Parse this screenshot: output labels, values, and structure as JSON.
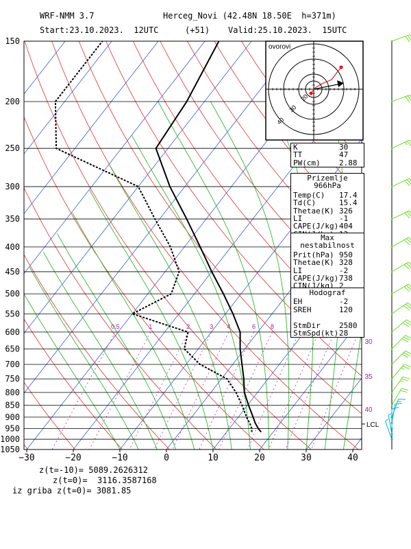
{
  "header": {
    "model": "WRF-NMM 3.7",
    "station": "Herceg_Novi (42.48N 18.50E  h=371m)",
    "start": "Start:23.10.2023.  12UTC",
    "lead": "(+51)",
    "valid": "Valid:25.10.2023.  15UTC"
  },
  "hodograph_inset": {
    "label": "ovorovi",
    "ring_labels": [
      "20",
      "30",
      "40"
    ]
  },
  "tables": {
    "indices": [
      {
        "k": "K",
        "v": "30"
      },
      {
        "k": "TT",
        "v": "47"
      },
      {
        "k": "PW(cm)",
        "v": "2.88"
      }
    ],
    "surface": {
      "title": "Prizemlje 966hPa",
      "rows": [
        {
          "k": "Temp(C)",
          "v": "17.4"
        },
        {
          "k": "Td(C)",
          "v": "15.4"
        },
        {
          "k": "Thetae(K)",
          "v": "326"
        },
        {
          "k": "LI",
          "v": "-1"
        },
        {
          "k": "CAPE(J/kg)",
          "v": "404"
        },
        {
          "k": "CIN(J/kg)",
          "v": "13"
        }
      ]
    },
    "max_instability": {
      "title": "Max nestabilnost",
      "rows": [
        {
          "k": "Prit(hPa)",
          "v": "950"
        },
        {
          "k": "Thetae(K)",
          "v": "328"
        },
        {
          "k": "LI",
          "v": "-2"
        },
        {
          "k": "CAPE(J/kg)",
          "v": "738"
        },
        {
          "k": "CIN(J/kg)",
          "v": "2"
        }
      ]
    },
    "hodograph": {
      "title": "Hodograf",
      "rows": [
        {
          "k": "EH",
          "v": "-2"
        },
        {
          "k": "SREH",
          "v": "120"
        },
        {
          "k": "",
          "v": ""
        },
        {
          "k": "StmDir",
          "v": "2580"
        },
        {
          "k": "StmSpd(kt)",
          "v": "28"
        }
      ]
    }
  },
  "footer": {
    "line1": "z(t=-10)= 5089.2626312",
    "line2": "z(t=0)=  3116.3587168",
    "line3": "iz griba z(t=0)= 3081.85"
  },
  "colors": {
    "isobar": "#000000",
    "isotherm": "#3b5bd9",
    "dry_adiabat": "#e03030",
    "moist_adiabat": "#2fb82f",
    "mixing_ratio": "#c050c0",
    "temperature": "#000000",
    "dewpoint": "#000000",
    "wind_barb": "#66dd22",
    "wind_barb_low": "#00b8d0"
  },
  "chart_data": {
    "type": "skew-t",
    "x_axis": {
      "ticks": [
        -30,
        -20,
        -10,
        0,
        10,
        20,
        30,
        40
      ],
      "xlim": [
        -30,
        42
      ]
    },
    "y_axis": {
      "scale": "log",
      "ticks": [
        150,
        200,
        250,
        300,
        350,
        400,
        450,
        500,
        550,
        600,
        650,
        700,
        750,
        800,
        850,
        900,
        950,
        1000,
        1050
      ],
      "ylim": [
        1050,
        150
      ]
    },
    "mixing_ratio_labels": [
      "0.5",
      "1",
      "2",
      "3",
      "4",
      "6",
      "8"
    ],
    "side_labels": [
      "30",
      "35",
      "40"
    ],
    "lcl": {
      "label": "LCL",
      "pressure": 930
    },
    "temperature": [
      {
        "p": 966,
        "t": 17.4
      },
      {
        "p": 950,
        "t": 16.2
      },
      {
        "p": 925,
        "t": 14.6
      },
      {
        "p": 900,
        "t": 13.2
      },
      {
        "p": 850,
        "t": 10.2
      },
      {
        "p": 800,
        "t": 7.2
      },
      {
        "p": 750,
        "t": 4.8
      },
      {
        "p": 700,
        "t": 2.0
      },
      {
        "p": 650,
        "t": -1.0
      },
      {
        "p": 600,
        "t": -3.8
      },
      {
        "p": 550,
        "t": -8.4
      },
      {
        "p": 500,
        "t": -13.8
      },
      {
        "p": 450,
        "t": -20.0
      },
      {
        "p": 400,
        "t": -26.6
      },
      {
        "p": 350,
        "t": -34.2
      },
      {
        "p": 300,
        "t": -43.2
      },
      {
        "p": 250,
        "t": -52.6
      },
      {
        "p": 200,
        "t": -53.8
      },
      {
        "p": 150,
        "t": -57.0
      }
    ],
    "dewpoint": [
      {
        "p": 966,
        "t": 15.4
      },
      {
        "p": 950,
        "t": 14.8
      },
      {
        "p": 925,
        "t": 13.4
      },
      {
        "p": 900,
        "t": 11.8
      },
      {
        "p": 850,
        "t": 8.8
      },
      {
        "p": 800,
        "t": 5.4
      },
      {
        "p": 750,
        "t": 1.2
      },
      {
        "p": 700,
        "t": -7.0
      },
      {
        "p": 650,
        "t": -13.0
      },
      {
        "p": 600,
        "t": -15.0
      },
      {
        "p": 550,
        "t": -30.0
      },
      {
        "p": 500,
        "t": -25.0
      },
      {
        "p": 450,
        "t": -27.0
      },
      {
        "p": 400,
        "t": -33.0
      },
      {
        "p": 350,
        "t": -41.0
      },
      {
        "p": 300,
        "t": -50.0
      },
      {
        "p": 250,
        "t": -74.0
      },
      {
        "p": 200,
        "t": -82.0
      },
      {
        "p": 150,
        "t": -82.0
      }
    ],
    "winds": [
      {
        "p": 150,
        "dir": 250,
        "spd": 30
      },
      {
        "p": 200,
        "dir": 250,
        "spd": 30
      },
      {
        "p": 250,
        "dir": 245,
        "spd": 25
      },
      {
        "p": 300,
        "dir": 245,
        "spd": 30
      },
      {
        "p": 350,
        "dir": 245,
        "spd": 30
      },
      {
        "p": 400,
        "dir": 240,
        "spd": 30
      },
      {
        "p": 450,
        "dir": 240,
        "spd": 30
      },
      {
        "p": 500,
        "dir": 240,
        "spd": 30
      },
      {
        "p": 550,
        "dir": 235,
        "spd": 30
      },
      {
        "p": 600,
        "dir": 230,
        "spd": 30
      },
      {
        "p": 650,
        "dir": 225,
        "spd": 30
      },
      {
        "p": 700,
        "dir": 225,
        "spd": 30
      },
      {
        "p": 750,
        "dir": 220,
        "spd": 25
      },
      {
        "p": 800,
        "dir": 215,
        "spd": 25
      },
      {
        "p": 850,
        "dir": 210,
        "spd": 20
      },
      {
        "p": 900,
        "dir": 200,
        "spd": 15
      },
      {
        "p": 925,
        "dir": 190,
        "spd": 10
      },
      {
        "p": 950,
        "dir": 180,
        "spd": 10
      },
      {
        "p": 975,
        "dir": 170,
        "spd": 5
      },
      {
        "p": 1000,
        "dir": 160,
        "spd": 5
      }
    ]
  }
}
